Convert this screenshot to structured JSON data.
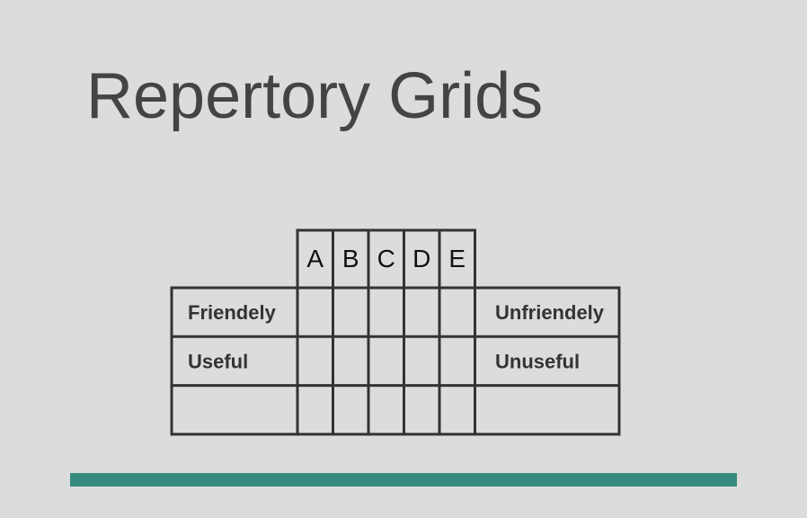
{
  "slide": {
    "title": "Repertory Grids"
  },
  "grid": {
    "elements": [
      "A",
      "B",
      "C",
      "D",
      "E"
    ],
    "constructs": [
      {
        "left": "Friendely",
        "right": "Unfriendely"
      },
      {
        "left": "Useful",
        "right": "Unuseful"
      },
      {
        "left": "",
        "right": ""
      }
    ]
  },
  "colors": {
    "background": "#dcdcdc",
    "title": "#444444",
    "grid_line": "#333333",
    "accent": "#388b7c"
  }
}
